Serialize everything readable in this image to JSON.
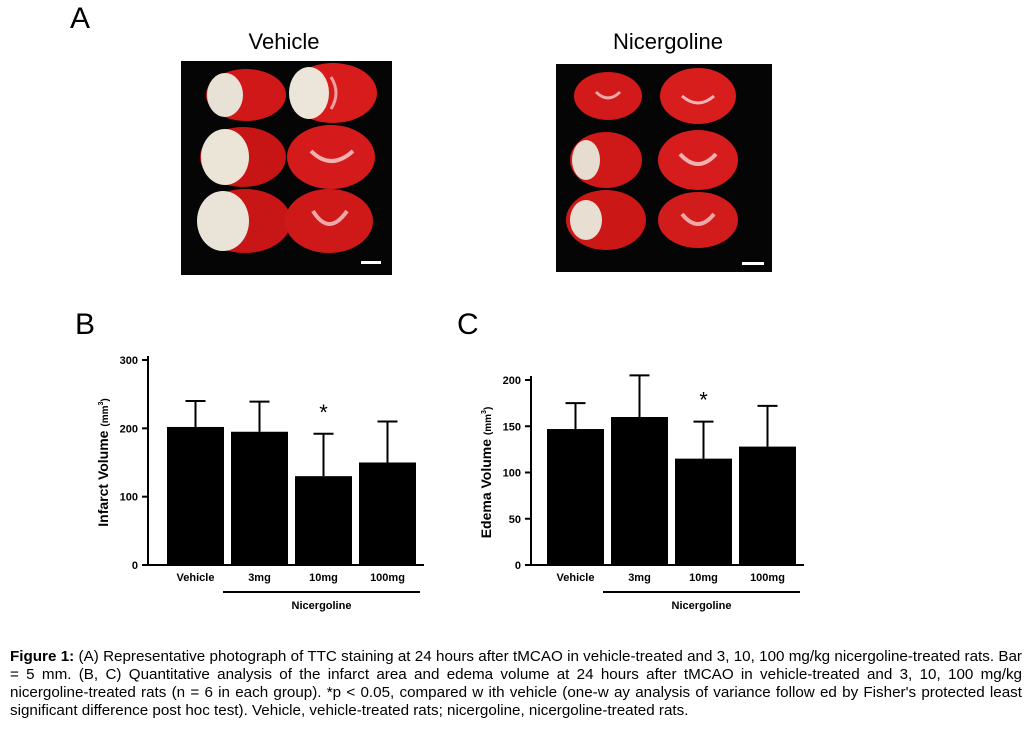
{
  "panels": {
    "a_label": "A",
    "b_label": "B",
    "c_label": "C",
    "photo_left_title": "Vehicle",
    "photo_right_title": "Nicergoline"
  },
  "chart_data": [
    {
      "type": "bar",
      "panel": "B",
      "categories": [
        "Vehicle",
        "3mg",
        "10mg",
        "100mg"
      ],
      "values": [
        202,
        195,
        130,
        150
      ],
      "errors": [
        38,
        44,
        62,
        60
      ],
      "ylabel": "Infarct Volume (mm3)",
      "ylim": [
        0,
        300
      ],
      "yticks": [
        "0",
        "100",
        "200",
        "300"
      ],
      "group_label": "Nicergoline",
      "significance": [
        {
          "category": "10mg",
          "mark": "*"
        }
      ]
    },
    {
      "type": "bar",
      "panel": "C",
      "categories": [
        "Vehicle",
        "3mg",
        "10mg",
        "100mg"
      ],
      "values": [
        147,
        160,
        115,
        128
      ],
      "errors": [
        28,
        45,
        40,
        44
      ],
      "ylabel": "Edema Volume (mm3)",
      "ylim": [
        0,
        200
      ],
      "yticks": [
        "0",
        "50",
        "100",
        "150",
        "200"
      ],
      "group_label": "Nicergoline",
      "significance": [
        {
          "category": "10mg",
          "mark": "*"
        }
      ]
    }
  ],
  "caption": {
    "label": "Figure 1:",
    "text": " (A) Representative photograph of TTC staining at 24 hours after tMCAO in vehicle-treated and 3, 10, 100 mg/kg nicergoline-treated rats. Bar = 5 mm. (B, C) Quantitative analysis of the infarct area and edema volume at 24 hours after tMCAO in vehicle-treated and 3, 10, 100 mg/kg nicergoline-treated rats (n = 6 in each group). *p < 0.05, compared w ith vehicle (one-w ay analysis of variance follow ed by Fisher's protected least significant difference post hoc test). Vehicle, vehicle-treated rats; nicergoline, nicergoline-treated rats."
  }
}
